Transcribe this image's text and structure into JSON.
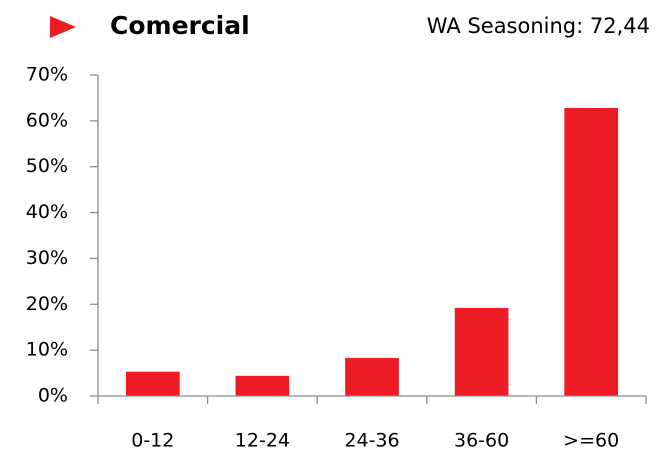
{
  "chart_data": {
    "type": "bar",
    "title": "Comercial",
    "subtitle": "WA Seasoning: 72,44",
    "categories": [
      "0-12",
      "12-24",
      "24-36",
      "36-60",
      ">=60"
    ],
    "values": [
      5.3,
      4.4,
      8.3,
      19.2,
      62.8
    ],
    "color": "#ed1c24",
    "ylim": [
      0,
      70
    ],
    "yticks": [
      {
        "value": 0,
        "label": "0%"
      },
      {
        "value": 10,
        "label": "10%"
      },
      {
        "value": 20,
        "label": "20%"
      },
      {
        "value": 30,
        "label": "30%"
      },
      {
        "value": 40,
        "label": "40%"
      },
      {
        "value": 50,
        "label": "50%"
      },
      {
        "value": 60,
        "label": "60%"
      },
      {
        "value": 70,
        "label": "70%"
      }
    ],
    "grid": false
  }
}
